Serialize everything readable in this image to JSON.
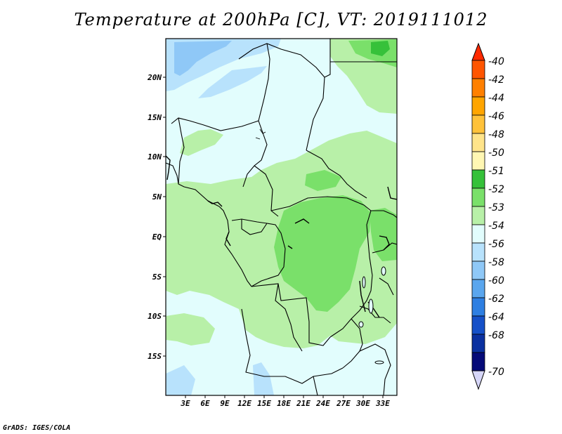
{
  "title": "Temperature at 200hPa [C], VT: 2019111012",
  "credit": "GrADS: IGES/COLA",
  "axes": {
    "lat_labels": [
      "20N",
      "15N",
      "10N",
      "5N",
      "EQ",
      "5S",
      "10S",
      "15S"
    ],
    "lon_labels": [
      "3E",
      "6E",
      "9E",
      "12E",
      "15E",
      "18E",
      "21E",
      "24E",
      "27E",
      "30E",
      "33E"
    ]
  },
  "colorbar": {
    "labels": [
      "-40",
      "-42",
      "-44",
      "-46",
      "-48",
      "-50",
      "-51",
      "-52",
      "-53",
      "-54",
      "-56",
      "-58",
      "-60",
      "-62",
      "-64",
      "-68",
      "-70"
    ],
    "colors": [
      "#ff2a00",
      "#ff5500",
      "#ff8000",
      "#ffa500",
      "#ffc23a",
      "#ffe48a",
      "#fff7b3",
      "#36c13a",
      "#7ae06a",
      "#b8f0a8",
      "#e2fdfd",
      "#b8e2fc",
      "#8fc8f7",
      "#5aa6ee",
      "#2e7fe2",
      "#1550c8",
      "#0a30a0",
      "#050a78",
      "#d6d6f8"
    ]
  },
  "map_fill_colors": {
    "base": "#e2fdfd",
    "light_green": "#b8f0a8",
    "mid_green": "#7ae06a",
    "dark_green": "#36c13a",
    "light_blue": "#b8e2fc",
    "mid_blue": "#8fc8f7"
  }
}
